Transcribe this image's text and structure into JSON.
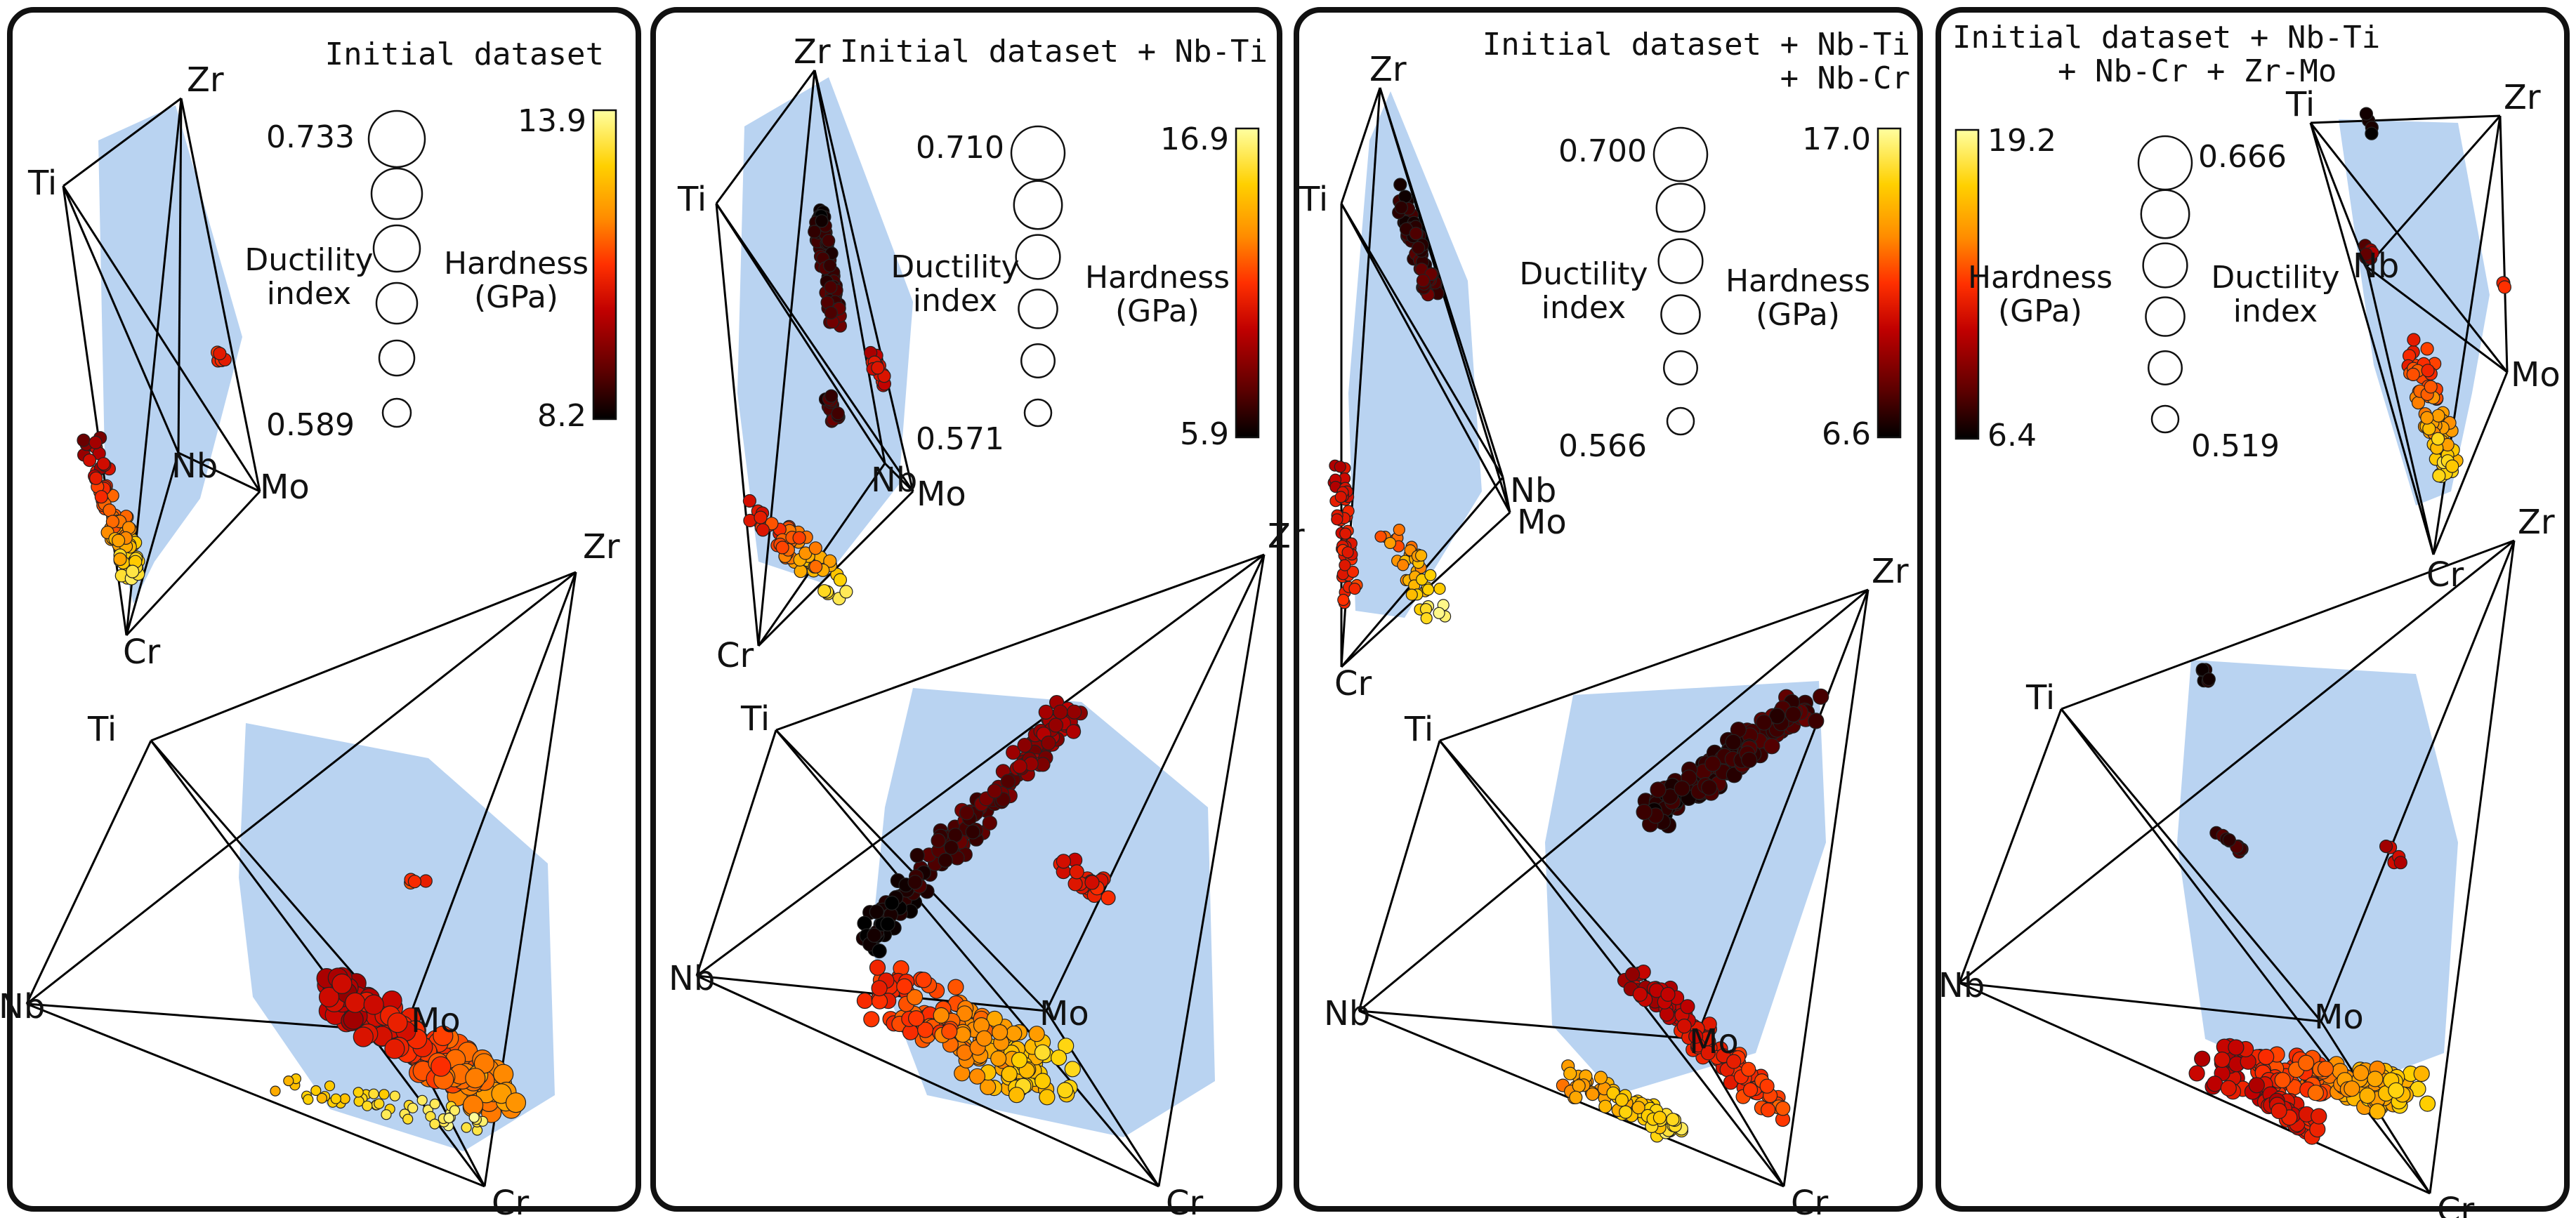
{
  "figure": {
    "panels": [
      {
        "title_lines": [
          "Initial dataset"
        ],
        "ductility": {
          "label_lines": [
            "Ductility",
            "index"
          ],
          "max": "0.733",
          "min": "0.589"
        },
        "hardness": {
          "label_lines": [
            "Hardness",
            "(GPa)"
          ],
          "max": "13.9",
          "min": "8.2"
        },
        "vertices": {
          "ti": "Ti",
          "zr": "Zr",
          "nb": "Nb",
          "mo": "Mo",
          "cr": "Cr"
        }
      },
      {
        "title_lines": [
          "Initial dataset + Nb-Ti"
        ],
        "ductility": {
          "label_lines": [
            "Ductility",
            "index"
          ],
          "max": "0.710",
          "min": "0.571"
        },
        "hardness": {
          "label_lines": [
            "Hardness",
            "(GPa)"
          ],
          "max": "16.9",
          "min": "5.9"
        },
        "vertices": {
          "ti": "Ti",
          "zr": "Zr",
          "nb": "Nb",
          "mo": "Mo",
          "cr": "Cr"
        }
      },
      {
        "title_lines": [
          "Initial dataset + Nb-Ti",
          "+ Nb-Cr"
        ],
        "ductility": {
          "label_lines": [
            "Ductility",
            "index"
          ],
          "max": "0.700",
          "min": "0.566"
        },
        "hardness": {
          "label_lines": [
            "Hardness",
            "(GPa)"
          ],
          "max": "17.0",
          "min": "6.6"
        },
        "vertices": {
          "ti": "Ti",
          "zr": "Zr",
          "nb": "Nb",
          "mo": "Mo",
          "cr": "Cr"
        }
      },
      {
        "title_lines": [
          "Initial dataset + Nb-Ti",
          "+ Nb-Cr + Zr-Mo"
        ],
        "ductility": {
          "label_lines": [
            "Ductility",
            "index"
          ],
          "max": "0.666",
          "min": "0.519"
        },
        "hardness": {
          "label_lines": [
            "Hardness",
            "(GPa)"
          ],
          "max": "19.2",
          "min": "6.4"
        },
        "vertices": {
          "ti": "Ti",
          "zr": "Zr",
          "nb": "Nb",
          "mo": "Mo",
          "cr": "Cr"
        }
      }
    ],
    "colors": {
      "frame": "#111111",
      "hull_fill": "#a8c8ee",
      "hull_dark": "#7aa9de",
      "colormap": [
        "#000000",
        "#5a0000",
        "#c00000",
        "#ff3000",
        "#ff8c00",
        "#ffd000",
        "#ffffa0"
      ]
    }
  }
}
